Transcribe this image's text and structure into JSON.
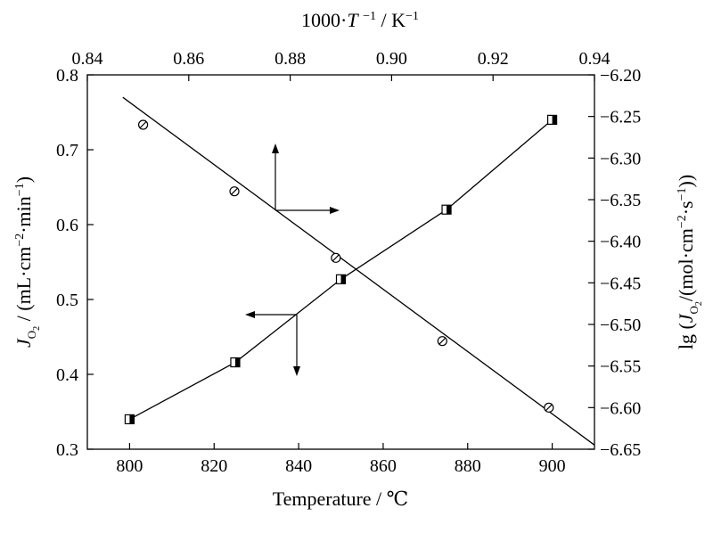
{
  "chart_data": {
    "type": "scatter",
    "xlabel_bottom": "Temperature / ℃",
    "xlabel_top": "1000·T⁻¹ / K⁻¹",
    "ylabel_left": "J_O2 / (mL·cm⁻²·min⁻¹)",
    "ylabel_right": "lg (J_O2/(mol·cm⁻²·s⁻¹))",
    "axes": {
      "bottom": {
        "min": 790,
        "max": 910,
        "ticks": [
          800,
          820,
          840,
          860,
          880,
          900
        ],
        "tick_labels": [
          "800",
          "820",
          "840",
          "860",
          "880",
          "900"
        ]
      },
      "top": {
        "min": 0.84,
        "max": 0.94,
        "ticks": [
          0.84,
          0.86,
          0.88,
          0.9,
          0.92,
          0.94
        ],
        "tick_labels": [
          "0.84",
          "0.86",
          "0.88",
          "0.90",
          "0.92",
          "0.94"
        ]
      },
      "left": {
        "min": 0.3,
        "max": 0.8,
        "ticks": [
          0.3,
          0.4,
          0.5,
          0.6,
          0.7,
          0.8
        ],
        "tick_labels": [
          "0.3",
          "0.4",
          "0.5",
          "0.6",
          "0.7",
          "0.8"
        ]
      },
      "right": {
        "min": -6.65,
        "max": -6.2,
        "ticks": [
          -6.65,
          -6.6,
          -6.55,
          -6.5,
          -6.45,
          -6.4,
          -6.35,
          -6.3,
          -6.25,
          -6.2
        ],
        "tick_labels": [
          "−6.65",
          "−6.60",
          "−6.55",
          "−6.50",
          "−6.45",
          "−6.40",
          "−6.35",
          "−6.30",
          "−6.25",
          "−6.20"
        ]
      }
    },
    "series": [
      {
        "marker": "square",
        "axes": "bottom-left",
        "x": [
          800,
          825,
          850,
          875,
          900
        ],
        "y": [
          0.34,
          0.416,
          0.527,
          0.62,
          0.74
        ],
        "connected": true
      },
      {
        "marker": "circle",
        "axes": "top-right",
        "x": [
          0.851,
          0.869,
          0.889,
          0.91,
          0.931
        ],
        "y": [
          -6.26,
          -6.34,
          -6.42,
          -6.52,
          -6.6
        ],
        "fit_line": {
          "x": [
            0.847,
            0.94
          ],
          "y": [
            -6.227,
            -6.645
          ]
        }
      }
    ],
    "grid": false,
    "legend": "none"
  }
}
